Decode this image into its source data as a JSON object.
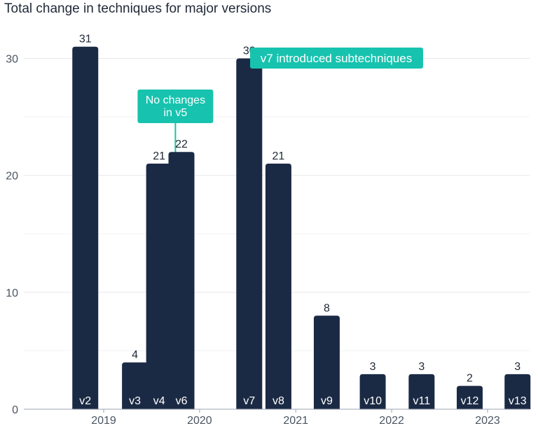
{
  "chart_data": {
    "type": "bar",
    "title": "Total change in techniques for major versions",
    "xlabel": "",
    "ylabel": "",
    "ylim": [
      0,
      32
    ],
    "yticks": [
      0,
      10,
      20,
      30
    ],
    "grid": true,
    "colors": {
      "bar": "#1b2a44",
      "annotation": "#17c3ae",
      "grid": "#e6e8eb",
      "text": "#1f2937"
    },
    "categories": [
      "v2",
      "v3",
      "v4",
      "v6",
      "v7",
      "v8",
      "v9",
      "v10",
      "v11",
      "v12",
      "v13"
    ],
    "values": [
      31,
      4,
      21,
      22,
      30,
      21,
      8,
      3,
      3,
      2,
      3
    ],
    "x_dates": [
      "2018-10-23",
      "2019-04-30",
      "2019-07-31",
      "2019-10-24",
      "2020-07-08",
      "2020-10-27",
      "2021-04-29",
      "2021-10-21",
      "2022-04-25",
      "2022-10-25",
      "2023-04-25"
    ],
    "year_ticks": [
      "2019",
      "2020",
      "2021",
      "2022",
      "2023"
    ],
    "annotations": [
      {
        "text": "v7 introduced subtechniques",
        "target": "v7"
      },
      {
        "text": "No changes in v5",
        "lines": [
          "No changes",
          "in v5"
        ],
        "date": "2019-10-01"
      }
    ]
  }
}
